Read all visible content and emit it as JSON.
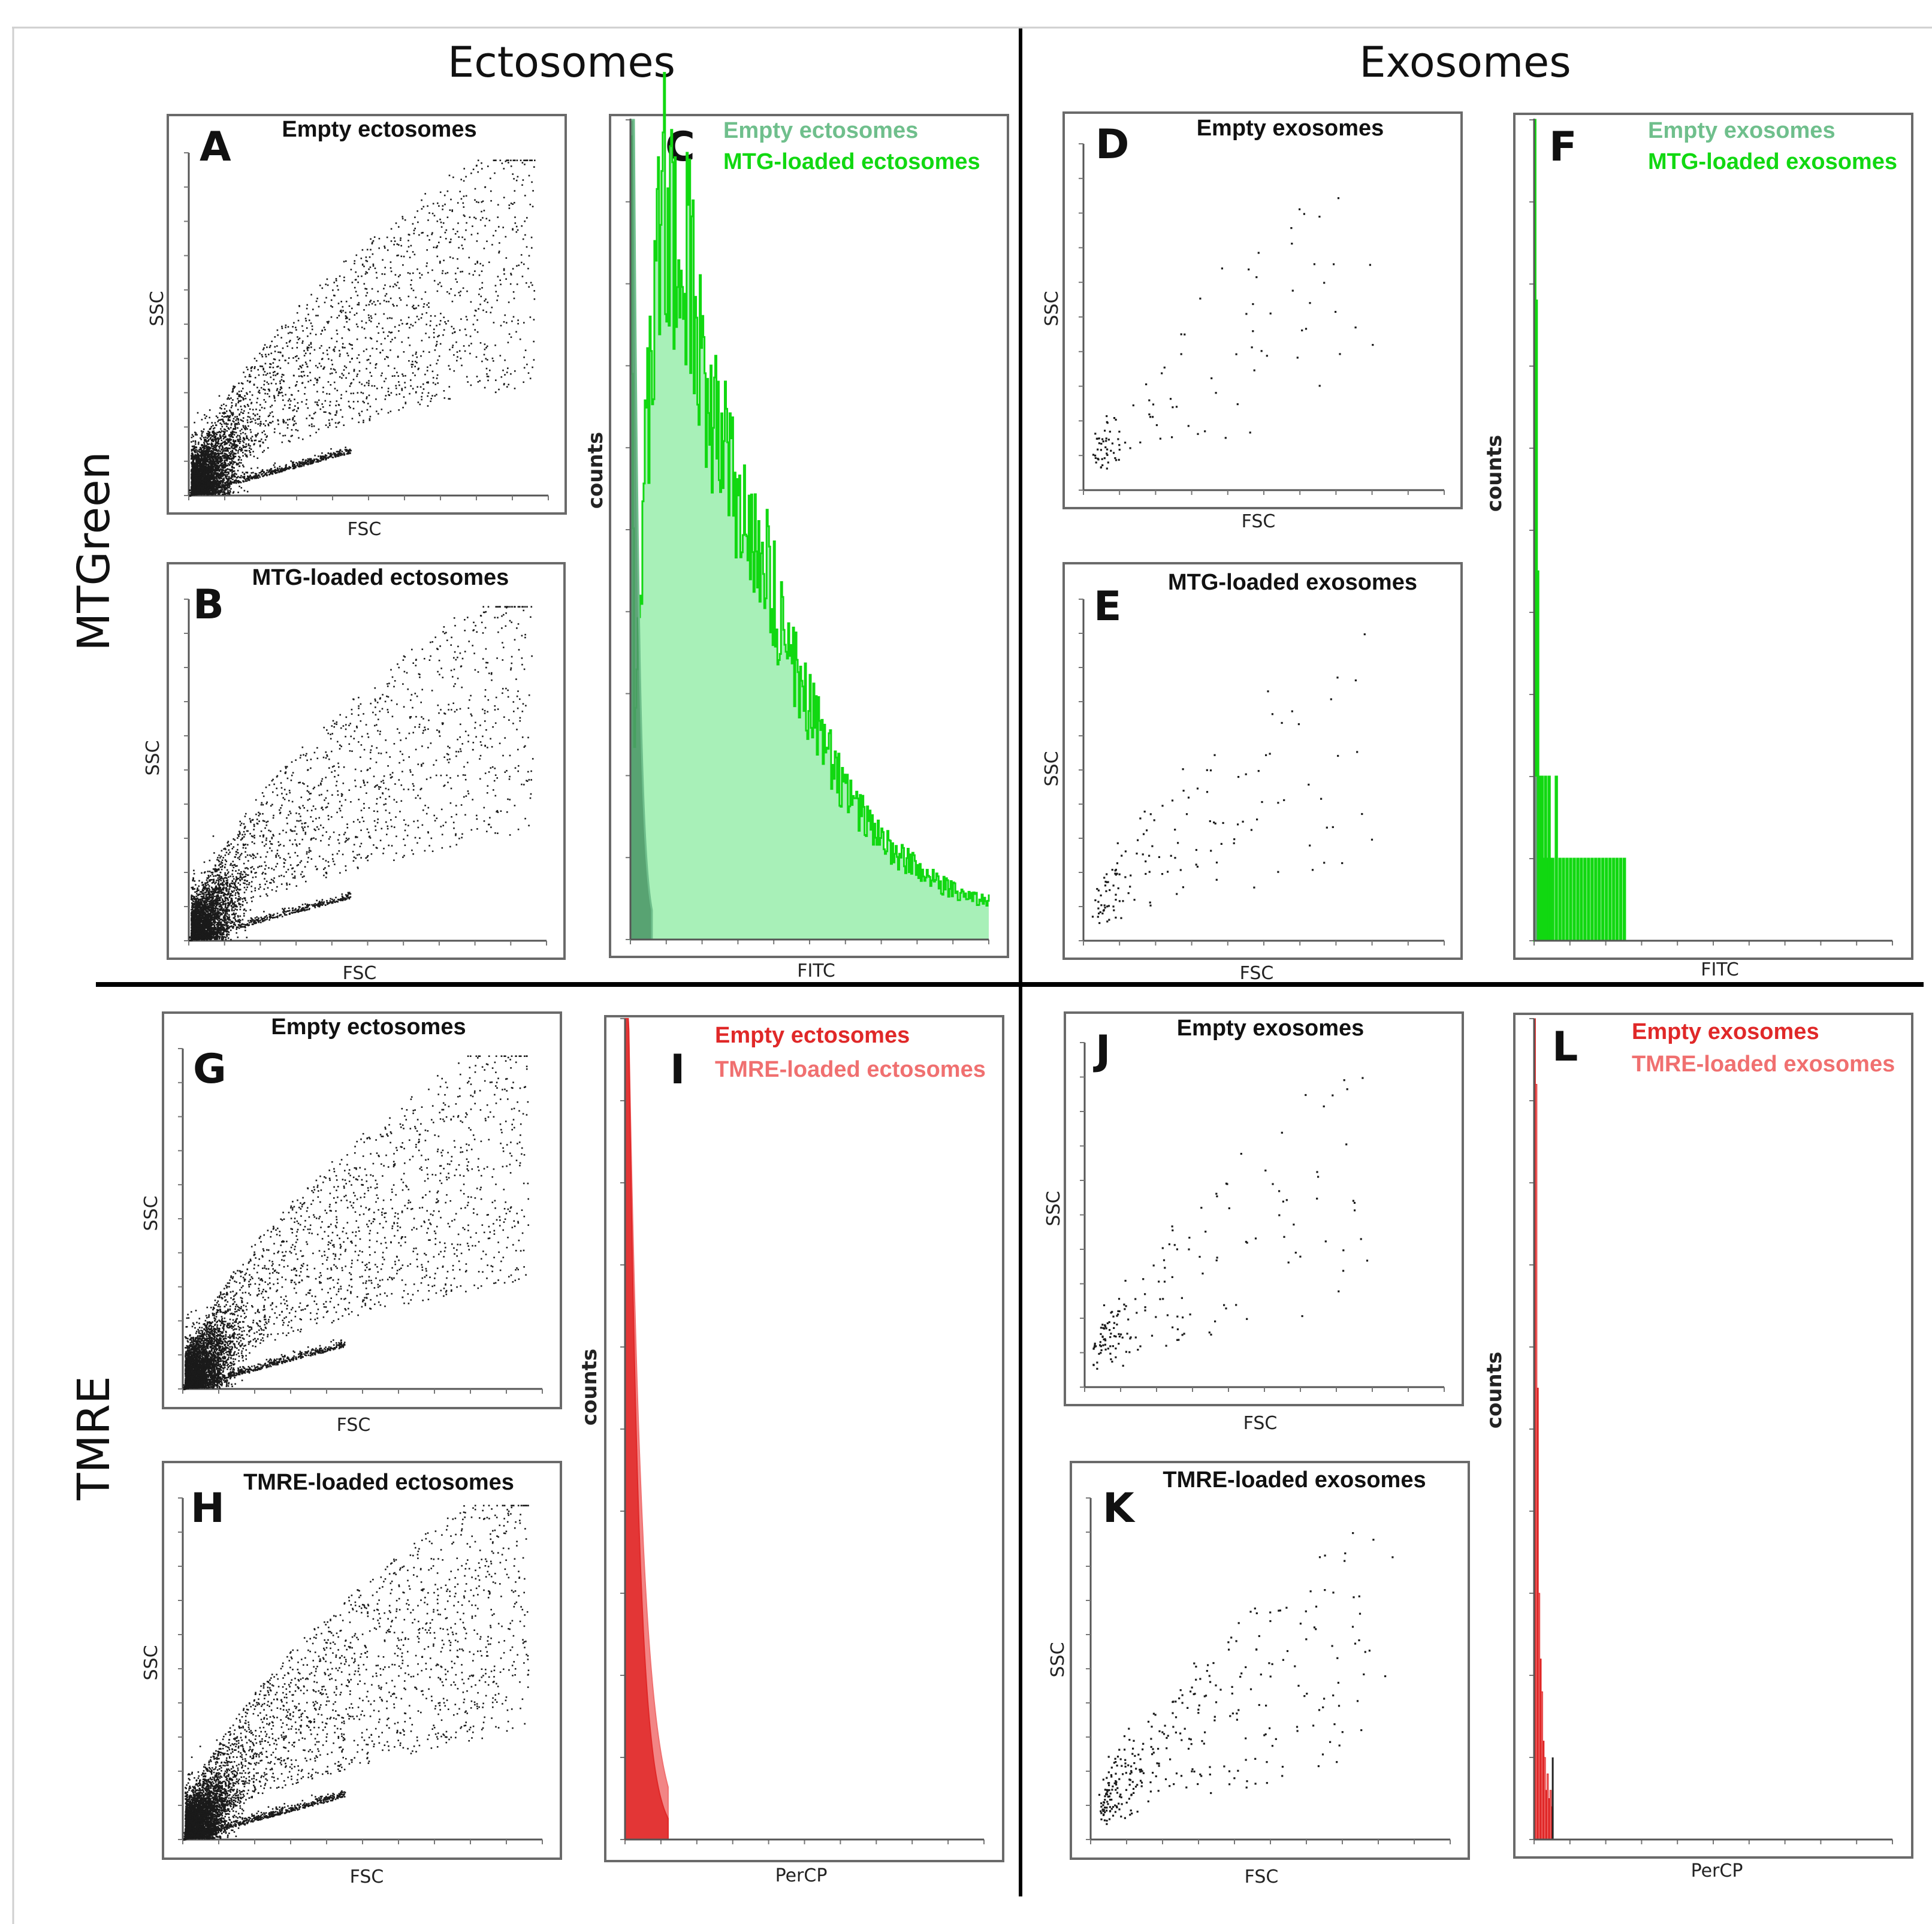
{
  "figure": {
    "columns": [
      "Ectosomes",
      "Exosomes"
    ],
    "rows": [
      "MTGreen",
      "TMRE"
    ]
  },
  "chart_data": [
    {
      "id": "A",
      "type": "scatter",
      "title": "Empty ectosomes",
      "xlabel": "FSC",
      "ylabel": "SSC",
      "x_range": [
        0,
        1
      ],
      "y_range": [
        0,
        1
      ],
      "events": 5200,
      "density": "dense"
    },
    {
      "id": "B",
      "type": "scatter",
      "title": "MTG-loaded ectosomes",
      "xlabel": "FSC",
      "ylabel": "SSC",
      "x_range": [
        0,
        1
      ],
      "y_range": [
        0,
        1
      ],
      "events": 4200,
      "density": "dense"
    },
    {
      "id": "C",
      "type": "histogram",
      "xlabel": "FITC",
      "ylabel": "counts",
      "x_range": [
        0,
        1
      ],
      "y_range": [
        0,
        1
      ],
      "series": [
        {
          "name": "Empty ectosomes",
          "color": "#6fbf8c",
          "peak_x": 0.01,
          "peak_y": 1.0,
          "decay": 0.015
        },
        {
          "name": "MTG-loaded ectosomes",
          "color": "#11d811",
          "fill": "#a8f0b8",
          "profile": [
            [
              0.0,
              0.98
            ],
            [
              0.01,
              0.28
            ],
            [
              0.03,
              0.48
            ],
            [
              0.07,
              0.82
            ],
            [
              0.09,
              0.92
            ],
            [
              0.13,
              0.8
            ],
            [
              0.16,
              0.84
            ],
            [
              0.2,
              0.68
            ],
            [
              0.25,
              0.64
            ],
            [
              0.3,
              0.5
            ],
            [
              0.35,
              0.49
            ],
            [
              0.4,
              0.42
            ],
            [
              0.45,
              0.34
            ],
            [
              0.5,
              0.28
            ],
            [
              0.55,
              0.23
            ],
            [
              0.6,
              0.18
            ],
            [
              0.65,
              0.15
            ],
            [
              0.7,
              0.12
            ],
            [
              0.75,
              0.1
            ],
            [
              0.8,
              0.09
            ],
            [
              0.85,
              0.07
            ],
            [
              0.9,
              0.06
            ],
            [
              0.95,
              0.05
            ],
            [
              1.0,
              0.05
            ]
          ]
        }
      ]
    },
    {
      "id": "D",
      "type": "scatter",
      "title": "Empty exosomes",
      "xlabel": "FSC",
      "ylabel": "SSC",
      "x_range": [
        0,
        1
      ],
      "y_range": [
        0,
        1
      ],
      "events": 110,
      "density": "sparse"
    },
    {
      "id": "E",
      "type": "scatter",
      "title": "MTG-loaded exosomes",
      "xlabel": "FSC",
      "ylabel": "SSC",
      "x_range": [
        0,
        1
      ],
      "y_range": [
        0,
        1
      ],
      "events": 140,
      "density": "sparse"
    },
    {
      "id": "F",
      "type": "histogram",
      "xlabel": "FITC",
      "ylabel": "counts",
      "x_range": [
        0,
        1
      ],
      "y_range": [
        0,
        1
      ],
      "series": [
        {
          "name": "Empty exosomes",
          "color": "#6fbf8c"
        },
        {
          "name": "MTG-loaded exosomes",
          "color": "#11d811"
        }
      ],
      "bins": [
        [
          0.0,
          1.0
        ],
        [
          0.004,
          0.78
        ],
        [
          0.008,
          0.45
        ],
        [
          0.012,
          0.2
        ],
        [
          0.016,
          0.1
        ],
        [
          0.02,
          0.2
        ],
        [
          0.025,
          0.1
        ],
        [
          0.03,
          0.2
        ],
        [
          0.035,
          0.1
        ],
        [
          0.04,
          0.2
        ],
        [
          0.045,
          0.1
        ],
        [
          0.05,
          0.1
        ],
        [
          0.06,
          0.2
        ],
        [
          0.07,
          0.1
        ],
        [
          0.08,
          0.1
        ],
        [
          0.09,
          0.1
        ],
        [
          0.1,
          0.1
        ],
        [
          0.11,
          0.1
        ],
        [
          0.12,
          0.1
        ],
        [
          0.13,
          0.1
        ],
        [
          0.14,
          0.1
        ],
        [
          0.15,
          0.1
        ],
        [
          0.16,
          0.1
        ],
        [
          0.17,
          0.1
        ],
        [
          0.18,
          0.1
        ],
        [
          0.19,
          0.1
        ],
        [
          0.2,
          0.1
        ],
        [
          0.21,
          0.1
        ],
        [
          0.22,
          0.1
        ],
        [
          0.23,
          0.1
        ],
        [
          0.24,
          0.1
        ],
        [
          0.25,
          0.1
        ]
      ]
    },
    {
      "id": "G",
      "type": "scatter",
      "title": "Empty ectosomes",
      "xlabel": "FSC",
      "ylabel": "SSC",
      "x_range": [
        0,
        1
      ],
      "y_range": [
        0,
        1
      ],
      "events": 5200,
      "density": "dense"
    },
    {
      "id": "H",
      "type": "scatter",
      "title": "TMRE-loaded ectosomes",
      "xlabel": "FSC",
      "ylabel": "SSC",
      "x_range": [
        0,
        1
      ],
      "y_range": [
        0,
        1
      ],
      "events": 6000,
      "density": "dense"
    },
    {
      "id": "I",
      "type": "histogram",
      "xlabel": "PerCP",
      "ylabel": "counts",
      "x_range": [
        0,
        1
      ],
      "y_range": [
        0,
        1
      ],
      "series": [
        {
          "name": "Empty ectosomes",
          "color": "#e02828",
          "peak_x": 0.01,
          "peak_y": 1.0,
          "decay": 0.03
        },
        {
          "name": "TMRE-loaded ectosomes",
          "color": "#f07070",
          "peak_x": 0.01,
          "peak_y": 1.0,
          "decay": 0.04
        }
      ]
    },
    {
      "id": "J",
      "type": "scatter",
      "title": "Empty exosomes",
      "xlabel": "FSC",
      "ylabel": "SSC",
      "x_range": [
        0,
        1
      ],
      "y_range": [
        0,
        1
      ],
      "events": 170,
      "density": "sparse"
    },
    {
      "id": "K",
      "type": "scatter",
      "title": "TMRE-loaded exosomes",
      "xlabel": "FSC",
      "ylabel": "SSC",
      "x_range": [
        0,
        1
      ],
      "y_range": [
        0,
        1
      ],
      "events": 330,
      "density": "sparse"
    },
    {
      "id": "L",
      "type": "histogram",
      "xlabel": "PerCP",
      "ylabel": "counts",
      "x_range": [
        0,
        1
      ],
      "y_range": [
        0,
        1
      ],
      "series": [
        {
          "name": "Empty exosomes",
          "color": "#e02828"
        },
        {
          "name": "TMRE-loaded exosomes",
          "color": "#f07070"
        }
      ],
      "bins": [
        [
          0.0,
          1.0
        ],
        [
          0.004,
          0.92
        ],
        [
          0.008,
          0.55
        ],
        [
          0.012,
          0.3
        ],
        [
          0.016,
          0.22
        ],
        [
          0.02,
          0.18
        ],
        [
          0.024,
          0.12
        ],
        [
          0.028,
          0.1
        ],
        [
          0.032,
          0.06
        ],
        [
          0.036,
          0.08
        ],
        [
          0.04,
          0.05
        ],
        [
          0.044,
          0.06
        ],
        [
          0.048,
          0.04
        ]
      ]
    }
  ]
}
